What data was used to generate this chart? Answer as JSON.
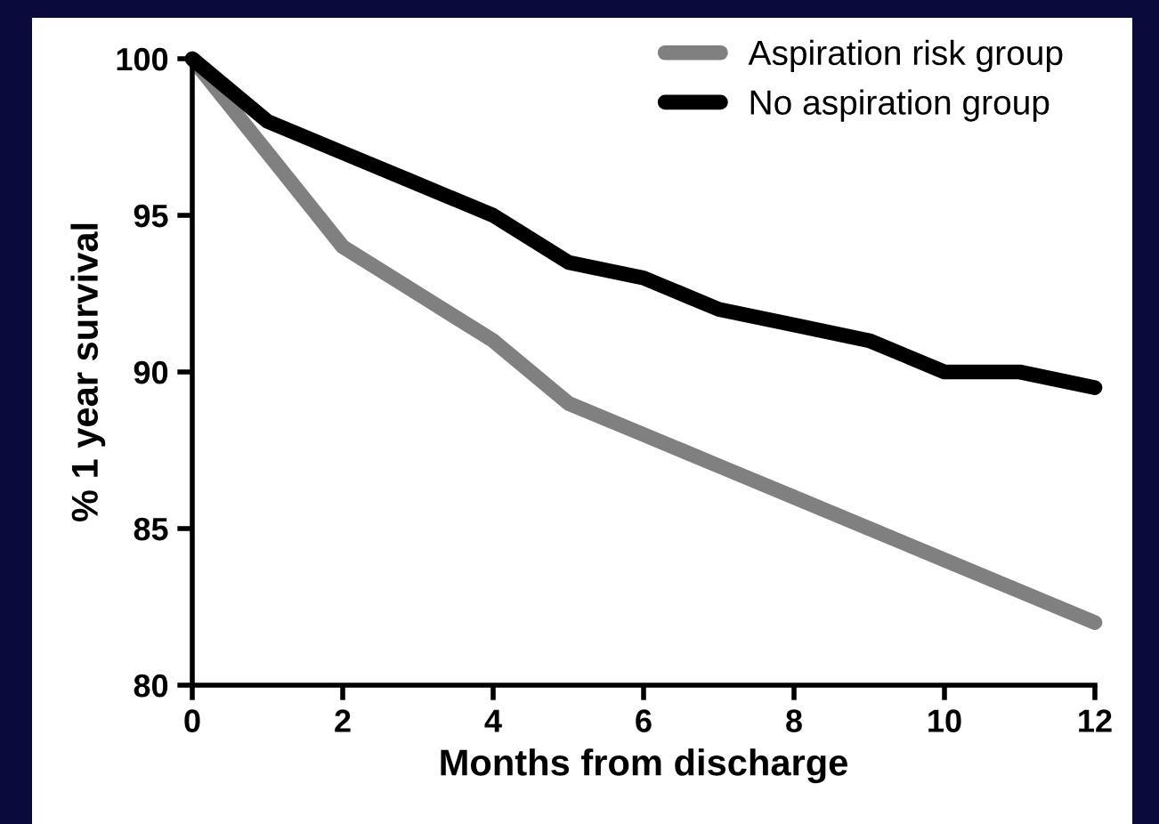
{
  "chart_data": {
    "type": "line",
    "xlabel": "Months from discharge",
    "ylabel": "% 1 year survival",
    "x": [
      0,
      1,
      2,
      3,
      4,
      5,
      6,
      7,
      8,
      9,
      10,
      11,
      12
    ],
    "series": [
      {
        "name": "Aspiration risk group",
        "color": "#808080",
        "values": [
          100,
          97,
          94,
          92.5,
          91,
          89,
          88,
          87,
          86,
          85,
          84,
          83,
          82
        ]
      },
      {
        "name": "No aspiration group",
        "color": "#000000",
        "values": [
          100,
          98,
          97,
          96,
          95,
          93.5,
          93,
          92,
          91.5,
          91,
          90,
          90,
          89.5
        ]
      }
    ],
    "xlim": [
      0,
      12
    ],
    "xticks": [
      0,
      2,
      4,
      6,
      8,
      10,
      12
    ],
    "ylim": [
      80,
      100
    ],
    "yticks": [
      80,
      85,
      90,
      95,
      100
    ],
    "grid": false,
    "legend": "top right",
    "marker": "none",
    "line_style": "solid"
  }
}
